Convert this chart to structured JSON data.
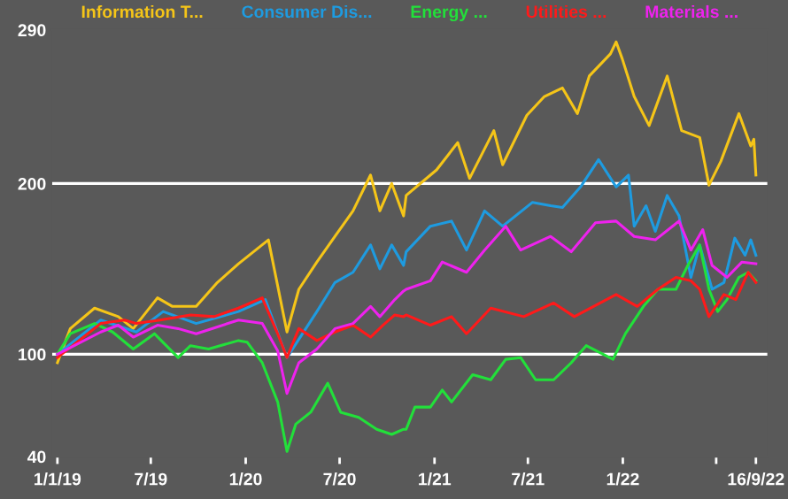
{
  "chart_data": {
    "type": "line",
    "xlim": [
      "2018-12-20",
      "2022-10-10"
    ],
    "xticks": [
      {
        "value": "2019-01-01",
        "label": "1/1/19"
      },
      {
        "value": "2019-07-01",
        "label": "7/19"
      },
      {
        "value": "2020-01-01",
        "label": "1/20"
      },
      {
        "value": "2020-07-01",
        "label": "7/20"
      },
      {
        "value": "2021-01-01",
        "label": "1/21"
      },
      {
        "value": "2021-07-01",
        "label": "7/21"
      },
      {
        "value": "2022-01-01",
        "label": "1/22"
      },
      {
        "value": "2022-07-01",
        "label": null
      },
      {
        "value": "2022-09-16",
        "label": "16/9/22"
      }
    ],
    "ylim": [
      40,
      290
    ],
    "yticks": [
      40,
      100,
      200,
      290
    ],
    "ref_lines": [
      {
        "axis": "y",
        "value": 100,
        "color": "#ffffff"
      },
      {
        "axis": "y",
        "value": 200,
        "color": "#ffffff"
      }
    ],
    "legend": "top",
    "marker": "none",
    "line_style": "solid",
    "series": [
      {
        "name": "Information T...",
        "color": "#f5c518",
        "x": [
          "2019-01-01",
          "2019-01-26",
          "2019-03-14",
          "2019-04-29",
          "2019-05-28",
          "2019-07-14",
          "2019-08-12",
          "2019-09-27",
          "2019-11-07",
          "2019-12-18",
          "2020-02-14",
          "2020-03-15",
          "2020-03-21",
          "2020-04-13",
          "2020-05-18",
          "2020-06-22",
          "2020-07-27",
          "2020-08-30",
          "2020-09-17",
          "2020-10-10",
          "2020-11-02",
          "2020-11-07",
          "2021-01-05",
          "2021-02-15",
          "2021-03-10",
          "2021-04-26",
          "2021-05-13",
          "2021-06-29",
          "2021-08-02",
          "2021-09-06",
          "2021-10-05",
          "2021-10-28",
          "2021-12-08",
          "2021-12-19",
          "2021-12-31",
          "2022-01-23",
          "2022-02-21",
          "2022-03-28",
          "2022-04-25",
          "2022-05-30",
          "2022-06-17",
          "2022-07-10",
          "2022-08-14",
          "2022-09-06",
          "2022-09-12",
          "2022-09-16"
        ],
        "values": [
          95,
          115,
          127,
          122,
          115,
          133,
          128,
          128,
          142,
          153,
          167,
          122,
          113,
          138,
          154,
          169,
          184,
          205,
          184,
          200,
          181,
          193,
          208,
          224,
          203,
          231,
          211,
          240,
          251,
          256,
          241,
          263,
          276,
          283,
          273,
          251,
          234,
          263,
          231,
          227,
          199,
          213,
          241,
          222,
          226,
          205
        ]
      },
      {
        "name": "Consumer Dis...",
        "color": "#1e9be0",
        "x": [
          "2019-01-01",
          "2019-03-26",
          "2019-06-03",
          "2019-07-25",
          "2019-09-27",
          "2019-12-18",
          "2020-02-08",
          "2020-03-21",
          "2020-05-18",
          "2020-06-22",
          "2020-07-27",
          "2020-08-30",
          "2020-09-17",
          "2020-10-10",
          "2020-11-02",
          "2020-11-07",
          "2020-12-24",
          "2021-02-03",
          "2021-03-04",
          "2021-04-08",
          "2021-05-13",
          "2021-07-10",
          "2021-08-14",
          "2021-09-06",
          "2021-10-11",
          "2021-11-15",
          "2021-12-19",
          "2022-01-12",
          "2022-01-23",
          "2022-02-15",
          "2022-03-05",
          "2022-03-28",
          "2022-04-20",
          "2022-05-13",
          "2022-05-30",
          "2022-06-23",
          "2022-07-16",
          "2022-08-06",
          "2022-08-26",
          "2022-09-06",
          "2022-09-16"
        ],
        "values": [
          100,
          120,
          113,
          125,
          118,
          125,
          132,
          98,
          125,
          142,
          148,
          164,
          150,
          164,
          152,
          160,
          175,
          178,
          161,
          184,
          175,
          189,
          187,
          186,
          198,
          214,
          198,
          205,
          175,
          187,
          172,
          193,
          181,
          145,
          164,
          138,
          142,
          168,
          158,
          167,
          158
        ]
      },
      {
        "name": "Energy ...",
        "color": "#22e03a",
        "x": [
          "2019-01-01",
          "2019-01-26",
          "2019-03-14",
          "2019-04-18",
          "2019-05-28",
          "2019-07-08",
          "2019-08-23",
          "2019-09-16",
          "2019-10-21",
          "2019-12-18",
          "2020-01-04",
          "2020-02-02",
          "2020-03-03",
          "2020-03-21",
          "2020-04-07",
          "2020-05-06",
          "2020-06-08",
          "2020-07-03",
          "2020-08-07",
          "2020-09-11",
          "2020-10-10",
          "2020-11-02",
          "2020-11-07",
          "2020-11-24",
          "2020-12-24",
          "2021-01-16",
          "2021-02-03",
          "2021-03-16",
          "2021-04-20",
          "2021-05-19",
          "2021-06-17",
          "2021-07-16",
          "2021-08-20",
          "2021-09-23",
          "2021-10-22",
          "2021-12-13",
          "2022-01-06",
          "2022-02-10",
          "2022-03-10",
          "2022-04-14",
          "2022-05-07",
          "2022-05-30",
          "2022-06-17",
          "2022-07-04",
          "2022-07-22",
          "2022-08-14",
          "2022-09-01",
          "2022-09-16"
        ],
        "values": [
          100,
          112,
          118,
          113,
          103,
          112,
          98,
          105,
          103,
          108,
          107,
          95,
          72,
          43,
          59,
          66,
          83,
          66,
          63,
          56,
          53,
          56,
          56,
          69,
          69,
          79,
          72,
          88,
          85,
          97,
          98,
          85,
          85,
          95,
          105,
          97,
          112,
          128,
          138,
          138,
          152,
          164,
          138,
          125,
          132,
          145,
          148,
          143
        ]
      },
      {
        "name": "Utilities ...",
        "color": "#ff1a1a",
        "x": [
          "2019-01-01",
          "2019-03-26",
          "2019-05-11",
          "2019-06-03",
          "2019-07-19",
          "2019-09-16",
          "2019-11-01",
          "2019-12-18",
          "2020-02-02",
          "2020-03-03",
          "2020-03-21",
          "2020-04-13",
          "2020-05-18",
          "2020-06-22",
          "2020-07-27",
          "2020-08-30",
          "2020-09-23",
          "2020-10-16",
          "2020-11-02",
          "2020-11-07",
          "2020-12-24",
          "2021-02-03",
          "2021-03-04",
          "2021-04-20",
          "2021-06-23",
          "2021-08-20",
          "2021-09-29",
          "2021-12-19",
          "2022-01-29",
          "2022-03-10",
          "2022-04-14",
          "2022-05-13",
          "2022-05-30",
          "2022-06-17",
          "2022-07-16",
          "2022-08-08",
          "2022-09-01",
          "2022-09-16"
        ],
        "values": [
          98,
          118,
          120,
          118,
          120,
          123,
          122,
          127,
          133,
          112,
          98,
          115,
          108,
          113,
          117,
          110,
          117,
          123,
          122,
          123,
          117,
          122,
          112,
          127,
          122,
          130,
          122,
          135,
          128,
          138,
          145,
          143,
          138,
          122,
          135,
          132,
          148,
          142
        ]
      },
      {
        "name": "Materials ...",
        "color": "#ee22ee",
        "x": [
          "2019-01-01",
          "2019-03-26",
          "2019-04-29",
          "2019-05-28",
          "2019-07-14",
          "2019-08-23",
          "2019-09-27",
          "2019-12-18",
          "2020-02-02",
          "2020-03-03",
          "2020-03-21",
          "2020-04-13",
          "2020-05-18",
          "2020-06-22",
          "2020-07-27",
          "2020-08-30",
          "2020-09-17",
          "2020-10-16",
          "2020-11-02",
          "2020-11-07",
          "2020-12-24",
          "2021-01-16",
          "2021-03-04",
          "2021-04-08",
          "2021-05-19",
          "2021-06-17",
          "2021-08-14",
          "2021-09-23",
          "2021-11-09",
          "2021-12-19",
          "2022-01-23",
          "2022-03-05",
          "2022-04-20",
          "2022-05-13",
          "2022-06-05",
          "2022-06-23",
          "2022-07-22",
          "2022-08-20",
          "2022-09-16"
        ],
        "values": [
          100,
          113,
          117,
          110,
          117,
          115,
          112,
          120,
          118,
          102,
          77,
          95,
          103,
          115,
          118,
          128,
          122,
          132,
          137,
          138,
          143,
          154,
          148,
          161,
          175,
          161,
          169,
          160,
          177,
          178,
          169,
          167,
          178,
          161,
          173,
          152,
          145,
          154,
          153
        ]
      }
    ]
  }
}
